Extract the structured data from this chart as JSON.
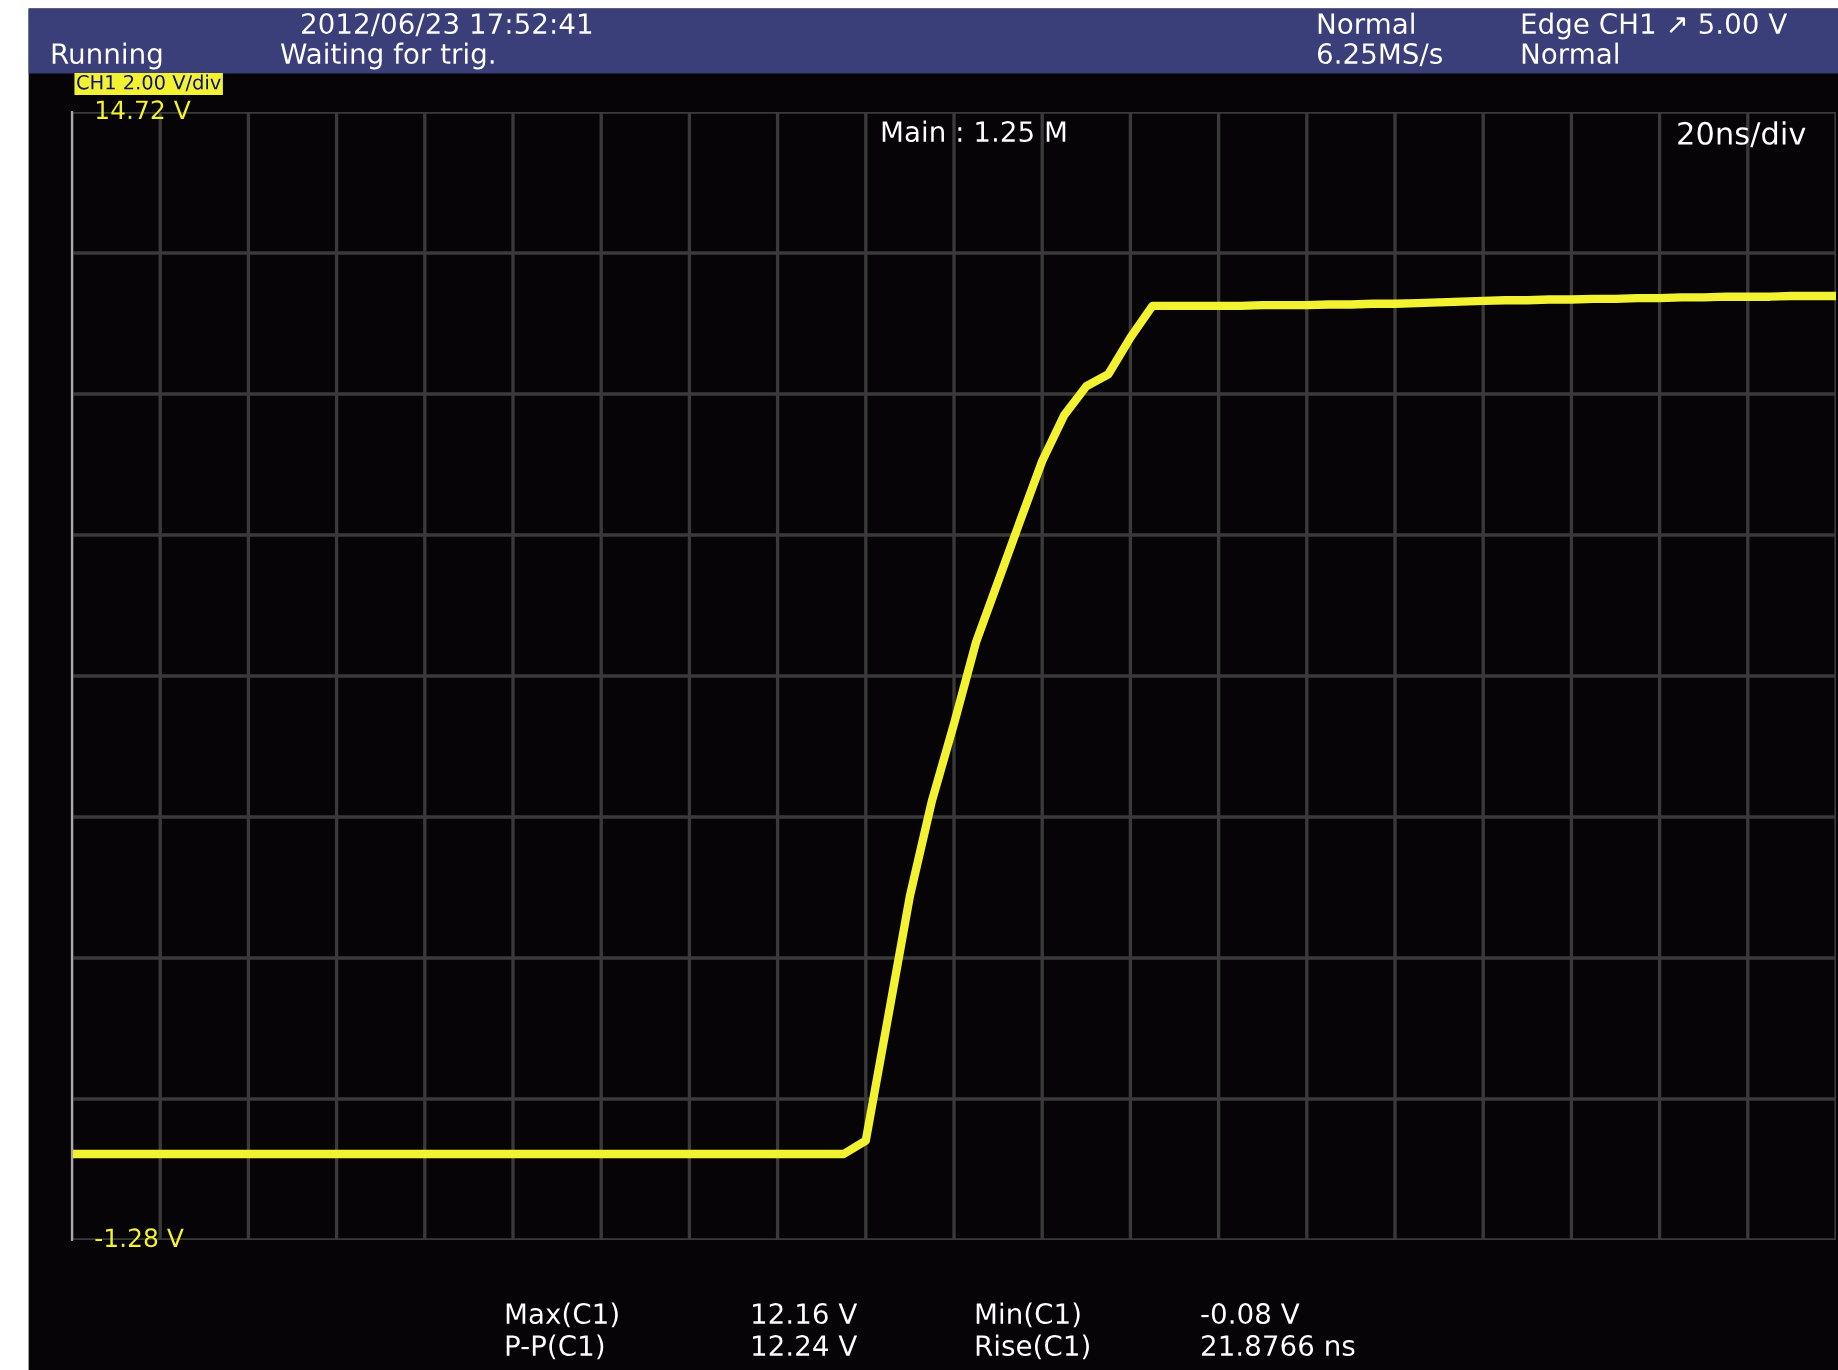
{
  "chart_data": {
    "type": "line",
    "categories": [
      null,
      null,
      null,
      null,
      null,
      null,
      null,
      null,
      null,
      null,
      null,
      null,
      null,
      null,
      null,
      null,
      null,
      null,
      null,
      null,
      null,
      null,
      null,
      null,
      null,
      null,
      null,
      null,
      null,
      null,
      null,
      null,
      null,
      null,
      null,
      null,
      null,
      null,
      null,
      null,
      null,
      null,
      null,
      null,
      null,
      null,
      null,
      null,
      null,
      null,
      null,
      null,
      null,
      null,
      null,
      null,
      null,
      null,
      null,
      null,
      null,
      null,
      null,
      null,
      null,
      null,
      null,
      null,
      null,
      null,
      null,
      null,
      null,
      null,
      null,
      null,
      null,
      null,
      null,
      null,
      null
    ],
    "series": [
      {
        "color": "#f2f230",
        "values": [
          -0.06,
          -0.06,
          -0.06,
          -0.06,
          -0.06,
          -0.06,
          -0.06,
          -0.06,
          -0.06,
          -0.06,
          -0.06,
          -0.06,
          -0.06,
          -0.06,
          -0.06,
          -0.06,
          -0.06,
          -0.06,
          -0.06,
          -0.06,
          -0.06,
          -0.06,
          -0.06,
          -0.06,
          -0.06,
          -0.06,
          -0.06,
          -0.06,
          -0.06,
          -0.06,
          -0.06,
          -0.06,
          -0.06,
          -0.06,
          -0.06,
          -0.06,
          0.13,
          1.86,
          3.6,
          4.95,
          6.04,
          7.2,
          8.06,
          8.92,
          9.77,
          10.42,
          10.83,
          11.0,
          11.52,
          11.97,
          11.97,
          11.97,
          11.97,
          11.97,
          11.98,
          11.98,
          11.98,
          11.99,
          11.99,
          12.0,
          12.0,
          12.01,
          12.02,
          12.03,
          12.04,
          12.05,
          12.05,
          12.06,
          12.06,
          12.07,
          12.07,
          12.08,
          12.08,
          12.09,
          12.09,
          12.1,
          12.1,
          12.1,
          12.11,
          12.11,
          12.11
        ]
      }
    ],
    "ylim": [
      -1.28,
      14.72
    ],
    "yticks": [
      {
        "value": -1.28,
        "label": "-1.28 V"
      },
      {
        "value": 0.72,
        "label": null
      },
      {
        "value": 2.72,
        "label": null
      },
      {
        "value": 4.72,
        "label": null
      },
      {
        "value": 6.72,
        "label": null
      },
      {
        "value": 8.72,
        "label": null
      },
      {
        "value": 10.72,
        "label": null
      },
      {
        "value": 12.72,
        "label": null
      },
      {
        "value": 14.72,
        "label": "14.72 V"
      }
    ],
    "grid": true,
    "legend": false,
    "marker": "none",
    "line_style": "solid",
    "annotations": [
      "Running",
      "Waiting for trig.",
      "2012/06/23 17:52:41",
      "Normal",
      "6.25MS/s",
      "Edge CH1 ↗ 5.00 V",
      "Normal",
      "CH1 2.00 V/div",
      "Main : 1.25 M",
      "20ns/div",
      "Max(C1)",
      "12.16 V",
      "P-P(C1)",
      "12.24 V",
      "Min(C1)",
      "-0.08 V",
      "Rise(C1)",
      "21.8766 ns"
    ]
  }
}
